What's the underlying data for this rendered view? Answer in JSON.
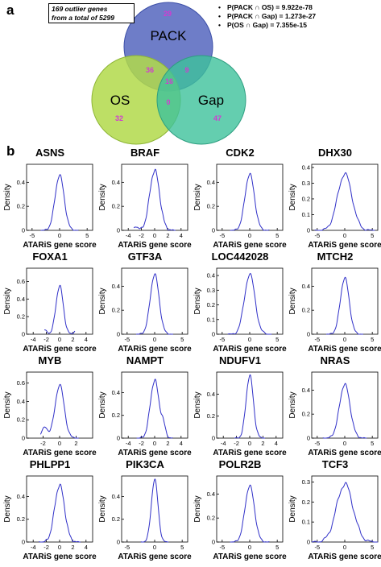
{
  "panel_a": {
    "letter": "a",
    "outlier_note": {
      "line1": "169 outlier genes",
      "line2": "from a total of 5299"
    },
    "stats": [
      "P(PACK ∩ OS) = 9.922e-78",
      "P(PACK ∩ Gap) = 1.273e-27",
      "P(OS ∩ Gap) = 7.355e-15"
    ],
    "sets": [
      {
        "name": "PACK",
        "color": "#5e6fc2"
      },
      {
        "name": "OS",
        "color": "#b2d94a"
      },
      {
        "name": "Gap",
        "color": "#3dc29b"
      }
    ],
    "counts": {
      "pack_only": "29",
      "pack_os": "36",
      "pack_gap": "9",
      "all_three": "16",
      "os_gap": "0",
      "os_only": "32",
      "gap_only": "47"
    },
    "count_color": "#d23ad2"
  },
  "panel_b": {
    "letter": "b",
    "xlabel": "ATARiS gene score",
    "ylabel": "Density",
    "line_color": "#3030c8",
    "plots": [
      {
        "gene": "ASNS",
        "xlim": [
          -6,
          6
        ],
        "xticks": [
          -5,
          0,
          5
        ],
        "yticks": [
          0,
          0.2,
          0.4
        ],
        "ylim": [
          0,
          0.55
        ],
        "mu": 0,
        "sd": 0.82,
        "peak": 0.46,
        "noise": "c"
      },
      {
        "gene": "BRAF",
        "xlim": [
          -5,
          5
        ],
        "xticks": [
          -4,
          -2,
          0,
          2,
          4
        ],
        "yticks": [
          0,
          0.2,
          0.4
        ],
        "ylim": [
          0,
          0.55
        ],
        "mu": 0,
        "sd": 0.75,
        "peak": 0.5,
        "bump": [
          -2.8,
          0.03
        ],
        "noise": "b"
      },
      {
        "gene": "CDK2",
        "xlim": [
          -6,
          6
        ],
        "xticks": [
          -5,
          0,
          5
        ],
        "yticks": [
          0,
          0.2,
          0.4
        ],
        "ylim": [
          0,
          0.55
        ],
        "mu": 0,
        "sd": 0.85,
        "peak": 0.47,
        "noise": "c"
      },
      {
        "gene": "DHX30",
        "xlim": [
          -6,
          6
        ],
        "xticks": [
          -5,
          0,
          5
        ],
        "yticks": [
          0,
          0.1,
          0.2,
          0.3,
          0.4
        ],
        "ylim": [
          0,
          0.42
        ],
        "mu": 0,
        "sd": 1.3,
        "peak": 0.36,
        "noise": "d"
      },
      {
        "gene": "FOXA1",
        "xlim": [
          -5,
          5
        ],
        "xticks": [
          -4,
          -2,
          0,
          2,
          4
        ],
        "yticks": [
          0,
          0.2,
          0.4,
          0.6
        ],
        "ylim": [
          0,
          0.75
        ],
        "mu": 0,
        "sd": 0.55,
        "peak": 0.55,
        "bump": [
          -2.3,
          0.05
        ],
        "bump2": [
          2.6,
          0.05
        ],
        "noise": "b"
      },
      {
        "gene": "GTF3A",
        "xlim": [
          -6,
          6
        ],
        "xticks": [
          -5,
          0,
          5
        ],
        "yticks": [
          0,
          0.2,
          0.4
        ],
        "ylim": [
          0,
          0.55
        ],
        "mu": 0,
        "sd": 0.8,
        "peak": 0.5,
        "noise": "c"
      },
      {
        "gene": "LOC442028",
        "xlim": [
          -6,
          6
        ],
        "xticks": [
          -5,
          0,
          5
        ],
        "yticks": [
          0,
          0.1,
          0.2,
          0.3,
          0.4
        ],
        "ylim": [
          0,
          0.45
        ],
        "mu": 0,
        "sd": 0.95,
        "peak": 0.41,
        "noise": "d"
      },
      {
        "gene": "MTCH2",
        "xlim": [
          -6,
          6
        ],
        "xticks": [
          -5,
          0,
          5
        ],
        "yticks": [
          0,
          0.2,
          0.4
        ],
        "ylim": [
          0,
          0.55
        ],
        "mu": 0,
        "sd": 0.8,
        "peak": 0.47,
        "noise": "c"
      },
      {
        "gene": "MYB",
        "xlim": [
          -4,
          4
        ],
        "xticks": [
          -2,
          0,
          2
        ],
        "yticks": [
          0,
          0.2,
          0.4,
          0.6
        ],
        "ylim": [
          0,
          0.72
        ],
        "mu": 0,
        "sd": 0.55,
        "peak": 0.58,
        "bump": [
          -1.8,
          0.12
        ],
        "noise": "b"
      },
      {
        "gene": "NAMPT",
        "xlim": [
          -5,
          5
        ],
        "xticks": [
          -4,
          -2,
          0,
          2,
          4
        ],
        "yticks": [
          0,
          0.2,
          0.4
        ],
        "ylim": [
          0,
          0.58
        ],
        "mu": 0,
        "sd": 0.65,
        "peak": 0.51,
        "bump": [
          1.3,
          0.1
        ],
        "noise": "b"
      },
      {
        "gene": "NDUFV1",
        "xlim": [
          -5,
          5
        ],
        "xticks": [
          -4,
          -2,
          0,
          2,
          4
        ],
        "yticks": [
          0,
          0.2,
          0.4
        ],
        "ylim": [
          0,
          0.6
        ],
        "mu": 0,
        "sd": 0.55,
        "peak": 0.57,
        "noise": "b"
      },
      {
        "gene": "NRAS",
        "xlim": [
          -6,
          6
        ],
        "xticks": [
          -5,
          0,
          5
        ],
        "yticks": [
          0,
          0.2,
          0.4
        ],
        "ylim": [
          0,
          0.55
        ],
        "mu": 0,
        "sd": 0.95,
        "peak": 0.45,
        "noise": "c"
      },
      {
        "gene": "PHLPP1",
        "xlim": [
          -5,
          5
        ],
        "xticks": [
          -4,
          -2,
          0,
          2,
          4
        ],
        "yticks": [
          0,
          0.2,
          0.4
        ],
        "ylim": [
          0,
          0.58
        ],
        "mu": 0,
        "sd": 0.75,
        "peak": 0.5,
        "noise": "b"
      },
      {
        "gene": "PIK3CA",
        "xlim": [
          -6,
          6
        ],
        "xticks": [
          -5,
          0,
          5
        ],
        "yticks": [
          0,
          0.2,
          0.4
        ],
        "ylim": [
          0,
          0.58
        ],
        "mu": 0,
        "sd": 0.6,
        "peak": 0.55,
        "noise": "c"
      },
      {
        "gene": "POLR2B",
        "xlim": [
          -6,
          6
        ],
        "xticks": [
          -5,
          0,
          5
        ],
        "yticks": [
          0,
          0.2,
          0.4
        ],
        "ylim": [
          0,
          0.55
        ],
        "mu": 0,
        "sd": 0.85,
        "peak": 0.47,
        "noise": "c"
      },
      {
        "gene": "TCF3",
        "xlim": [
          -6,
          6
        ],
        "xticks": [
          -5,
          0,
          5
        ],
        "yticks": [
          0,
          0.1,
          0.2,
          0.3
        ],
        "ylim": [
          0,
          0.33
        ],
        "mu": 0,
        "sd": 1.5,
        "peak": 0.29,
        "noise": "d"
      }
    ]
  }
}
